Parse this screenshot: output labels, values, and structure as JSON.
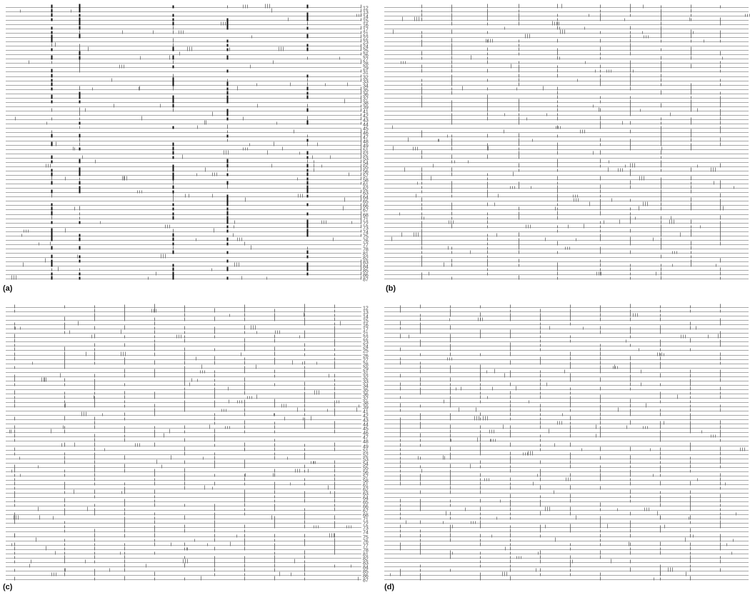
{
  "figure": {
    "panels": [
      {
        "id": "a",
        "label": "(a)",
        "row_labels_shown": true
      },
      {
        "id": "b",
        "label": "(b)",
        "row_labels_shown": false
      },
      {
        "id": "c",
        "label": "(c)",
        "row_labels_shown": true
      },
      {
        "id": "d",
        "label": "(d)",
        "row_labels_shown": false
      }
    ],
    "row_labels": [
      "12",
      "13",
      "14",
      "15",
      "16",
      "17",
      "21",
      "22",
      "23",
      "24",
      "25",
      "26",
      "27",
      "28",
      "29",
      "31",
      "32",
      "33",
      "34",
      "35",
      "36",
      "37",
      "38",
      "39",
      "41",
      "42",
      "43",
      "44",
      "45",
      "46",
      "47",
      "48",
      "49",
      "51",
      "52",
      "53",
      "54",
      "55",
      "56",
      "57",
      "58",
      "61",
      "62",
      "63",
      "64",
      "65",
      "66",
      "67",
      "68",
      "71",
      "72",
      "73",
      "74",
      "75",
      "76",
      "77",
      "78",
      "81",
      "82",
      "83",
      "84",
      "85",
      "86",
      "87"
    ],
    "colors": {
      "line": "#8a8a8a",
      "tick": "#555555",
      "dark": "#111111",
      "label": "#444444"
    }
  }
}
